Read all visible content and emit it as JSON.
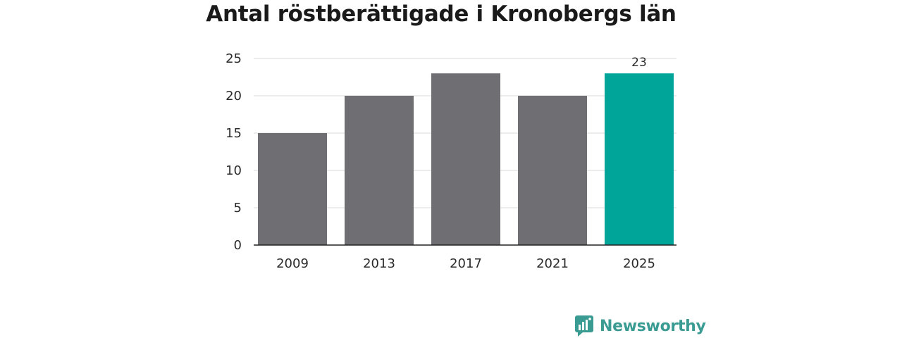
{
  "header": {
    "title": "Antal röstberättigade i Kronobergs län"
  },
  "brand": {
    "name": "Newsworthy"
  },
  "colors": {
    "bar": "#6f6e73",
    "highlight": "#00a59a",
    "grid": "#d9d9d9",
    "axis": "#222222"
  },
  "chart_data": {
    "type": "bar",
    "title": "Antal röstberättigade i Kronobergs län",
    "xlabel": "",
    "ylabel": "",
    "categories": [
      "2009",
      "2013",
      "2017",
      "2021",
      "2025"
    ],
    "values": [
      15,
      20,
      23,
      20,
      23
    ],
    "highlight_index": 4,
    "data_labels": [
      null,
      null,
      null,
      null,
      "23"
    ],
    "ylim": [
      0,
      25
    ],
    "yticks": [
      0,
      5,
      10,
      15,
      20,
      25
    ],
    "grid": true,
    "legend": "none"
  }
}
